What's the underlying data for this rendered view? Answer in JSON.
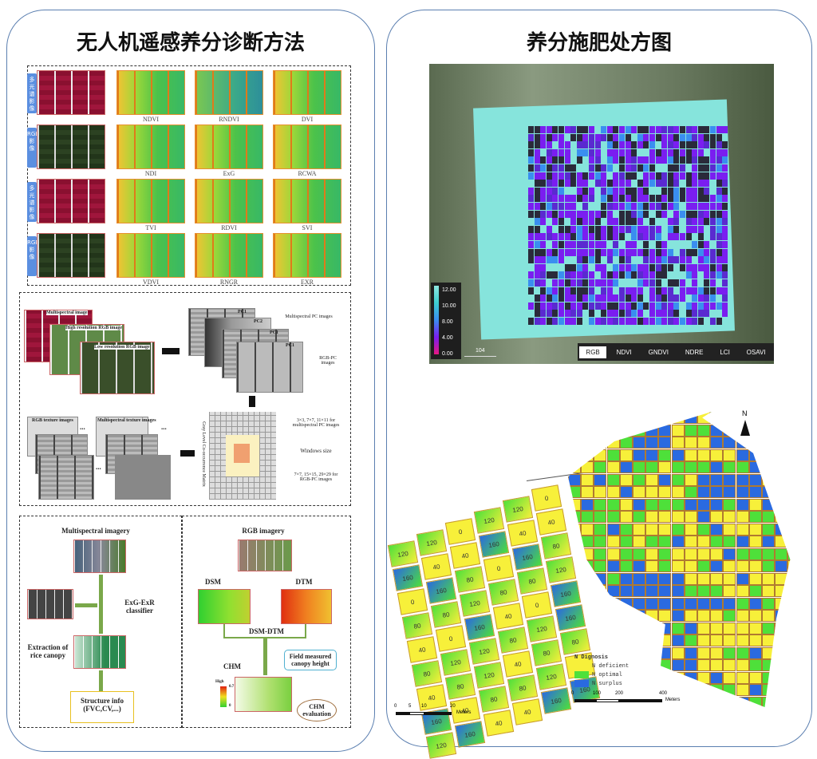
{
  "left_panel": {
    "title": "无人机遥感养分诊断方法",
    "vi_grid": {
      "row_labels": [
        "多光谱影像",
        "RGB影像",
        "多光谱影像",
        "RGB影像"
      ],
      "index_labels": [
        [
          "NDVI",
          "RNDVI",
          "DVI"
        ],
        [
          "NDI",
          "ExG",
          "RCWA"
        ],
        [
          "TVI",
          "RDVI",
          "SVI"
        ],
        [
          "VDVI",
          "RNGR",
          "EXR"
        ]
      ]
    },
    "texture": {
      "inputs": [
        "Multispectral image",
        "High resolution RGB image",
        "Low resolution RGB image"
      ],
      "pc_labels": [
        "PC1",
        "PC2",
        "PC1",
        "PC1"
      ],
      "multispectral_pc": "Multispectral PC images",
      "rgb_pc": "RGB-PC images",
      "glcm": "Gray Level Co-occurrence Matrix",
      "window_top": "3×3, 7×7, 11×11 for multispectral PC images",
      "window_label": "Windows size",
      "window_bottom": "7×7, 15×15, 29×29 for RGB-PC images",
      "rgb_texture": "RGB texture images",
      "ms_texture": "Multispectral texture images",
      "ellipsis": "..."
    },
    "structure": {
      "ms_title": "Multispectral imagery",
      "classifier": "ExG-ExR classifier",
      "extraction": "Extraction of rice canopy",
      "structure_info": "Structure info (FVC,CV,...)",
      "rgb_title": "RGB imagery",
      "dsm": "DSM",
      "dtm": "DTM",
      "diff": "DSM-DTM",
      "chm": "CHM",
      "field": "Field measured canopy height",
      "evaluation": "CHM evaluation",
      "scale_high": "High",
      "scale_max": "0.7",
      "scale_min": "0"
    }
  },
  "right_panel": {
    "title": "养分施肥处方图",
    "map": {
      "legend_values": [
        "12.00",
        "10.00",
        "8.00",
        "4.00",
        "0.00"
      ],
      "legend_colors": [
        "#8ee8e0",
        "#3ccfd0",
        "#3a8ef0",
        "#7a1ef0",
        "#e81880"
      ],
      "scale": "104",
      "tabs": [
        "RGB",
        "NDVI",
        "GNDVI",
        "NDRE",
        "LCI",
        "OSAVI"
      ],
      "selected_tab": "RGB"
    },
    "diagnosis": {
      "north": "N",
      "legend_title": "N Dignosis",
      "classes": [
        {
          "label": "N deficient",
          "color": "#f7f03a"
        },
        {
          "label": "N optimal",
          "color": "#4ee03a"
        },
        {
          "label": "N surplus",
          "color": "#2a6ae0"
        }
      ],
      "scale_ticks": [
        "0",
        "100",
        "200",
        "400"
      ],
      "scale_unit": "Meters",
      "inset_scale_ticks": [
        "0",
        "5",
        "10",
        "20"
      ],
      "inset_scale_unit": "Meters",
      "plot_rates": [
        [
          120,
          160,
          0,
          80,
          40,
          80,
          40,
          160,
          120
        ],
        [
          120,
          40,
          160,
          80,
          0,
          120,
          80,
          40,
          160
        ],
        [
          0,
          40,
          80,
          120,
          160,
          120,
          120,
          80,
          40
        ],
        [
          120,
          160,
          0,
          80,
          40,
          80,
          40,
          80,
          40
        ],
        [
          120,
          40,
          160,
          80,
          0,
          120,
          80,
          120,
          160
        ],
        [
          0,
          40,
          80,
          120,
          160,
          160,
          80,
          40,
          160
        ]
      ]
    }
  }
}
